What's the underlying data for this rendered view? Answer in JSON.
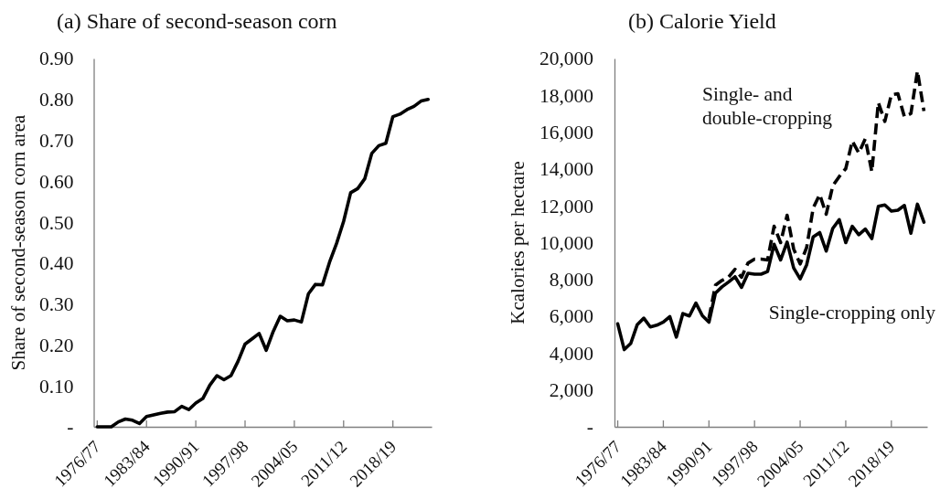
{
  "chart_data": [
    {
      "type": "line",
      "title": "(a) Share of second-season corn",
      "ylabel": "Share of second-season corn area",
      "categories": [
        "1976/77",
        null,
        null,
        null,
        null,
        null,
        null,
        "1983/84",
        null,
        null,
        null,
        null,
        null,
        null,
        "1990/91",
        null,
        null,
        null,
        null,
        null,
        null,
        "1997/98",
        null,
        null,
        null,
        null,
        null,
        null,
        "2004/05",
        null,
        null,
        null,
        null,
        null,
        null,
        "2011/12",
        null,
        null,
        null,
        null,
        null,
        null,
        "2018/19",
        null,
        null,
        null,
        null,
        null
      ],
      "color": "#000000",
      "values": [
        0,
        0,
        0,
        0.012,
        0.019,
        0.016,
        0.008,
        0.025,
        0.029,
        0.033,
        0.036,
        0.037,
        0.05,
        0.042,
        0.058,
        0.069,
        0.102,
        0.125,
        0.115,
        0.125,
        0.16,
        0.202,
        0.215,
        0.228,
        0.187,
        0.233,
        0.27,
        0.259,
        0.261,
        0.256,
        0.325,
        0.348,
        0.347,
        0.402,
        0.448,
        0.502,
        0.572,
        0.582,
        0.606,
        0.668,
        0.687,
        0.693,
        0.758,
        0.764,
        0.775,
        0.783,
        0.796,
        0.8
      ],
      "ylim": [
        0,
        0.9
      ],
      "yticks": [
        {
          "value": 0,
          "label": "-"
        },
        {
          "value": 0.1,
          "label": "0.10"
        },
        {
          "value": 0.2,
          "label": "0.20"
        },
        {
          "value": 0.3,
          "label": "0.30"
        },
        {
          "value": 0.4,
          "label": "0.40"
        },
        {
          "value": 0.5,
          "label": "0.50"
        },
        {
          "value": 0.6,
          "label": "0.60"
        },
        {
          "value": 0.7,
          "label": "0.70"
        },
        {
          "value": 0.8,
          "label": "0.80"
        },
        {
          "value": 0.9,
          "label": "0.90"
        }
      ]
    },
    {
      "type": "line",
      "title": "(b) Calorie Yield",
      "ylabel": "Kcalories per hectare",
      "categories": [
        "1976/77",
        null,
        null,
        null,
        null,
        null,
        null,
        "1983/84",
        null,
        null,
        null,
        null,
        null,
        null,
        "1990/91",
        null,
        null,
        null,
        null,
        null,
        null,
        "1997/98",
        null,
        null,
        null,
        null,
        null,
        null,
        "2004/05",
        null,
        null,
        null,
        null,
        null,
        null,
        "2011/12",
        null,
        null,
        null,
        null,
        null,
        null,
        "2018/19",
        null,
        null,
        null,
        null,
        null
      ],
      "series": [
        {
          "name": "Single- and double-cropping",
          "color": "#000000",
          "line_style": "dashed",
          "values": [
            null,
            null,
            null,
            null,
            null,
            null,
            null,
            null,
            null,
            null,
            null,
            null,
            null,
            null,
            5900,
            7690,
            7950,
            8120,
            8550,
            8120,
            8890,
            9110,
            9110,
            9060,
            10890,
            10000,
            11490,
            9660,
            8840,
            9740,
            11880,
            12620,
            11540,
            13080,
            13590,
            14020,
            15520,
            14870,
            15640,
            13850,
            17610,
            16580,
            18030,
            18090,
            16840,
            17010,
            19320,
            17150
          ]
        },
        {
          "name": "Single-cropping only",
          "color": "#000000",
          "line_style": "solid",
          "values": [
            5590,
            4190,
            4530,
            5550,
            5900,
            5420,
            5520,
            5690,
            5980,
            4870,
            6150,
            6020,
            6720,
            6030,
            5680,
            7260,
            7600,
            7860,
            8150,
            7570,
            8340,
            8290,
            8290,
            8430,
            9910,
            9060,
            10030,
            8630,
            8030,
            8800,
            10310,
            10550,
            9540,
            10770,
            11250,
            10000,
            10890,
            10430,
            10740,
            10220,
            11970,
            12050,
            11710,
            11760,
            12020,
            10510,
            12090,
            11110
          ]
        }
      ],
      "ylim": [
        0,
        20000
      ],
      "yticks": [
        {
          "value": 0,
          "label": "-"
        },
        {
          "value": 2000,
          "label": "2,000"
        },
        {
          "value": 4000,
          "label": "4,000"
        },
        {
          "value": 6000,
          "label": "6,000"
        },
        {
          "value": 8000,
          "label": "8,000"
        },
        {
          "value": 10000,
          "label": "10,000"
        },
        {
          "value": 12000,
          "label": "12,000"
        },
        {
          "value": 14000,
          "label": "14,000"
        },
        {
          "value": 16000,
          "label": "16,000"
        },
        {
          "value": 18000,
          "label": "18,000"
        },
        {
          "value": 20000,
          "label": "20,000"
        }
      ]
    }
  ]
}
